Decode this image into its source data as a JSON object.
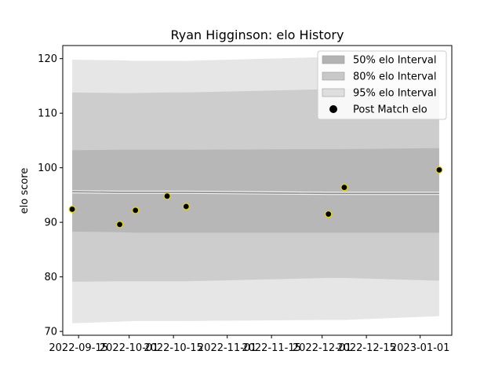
{
  "chart_data": {
    "type": "line",
    "title": "Ryan Higginson: elo History",
    "xlabel": "",
    "ylabel": "elo score",
    "xlim": [
      "2022-09-10",
      "2023-01-11"
    ],
    "ylim": [
      69.3,
      122.4
    ],
    "x_ticks": [
      "2022-09-15",
      "2022-10-01",
      "2022-10-15",
      "2022-11-01",
      "2022-11-15",
      "2022-12-01",
      "2022-12-15",
      "2023-01-01"
    ],
    "y_ticks": [
      70,
      80,
      90,
      100,
      110,
      120
    ],
    "legend_position": "top-right",
    "legend": [
      {
        "label": "50% elo Interval",
        "color": "#b3b3b3"
      },
      {
        "label": "80% elo Interval",
        "color": "#c8c8c8"
      },
      {
        "label": "95% elo Interval",
        "color": "#dedede"
      },
      {
        "label": "Post Match elo",
        "color": "#000000"
      }
    ],
    "x": [
      "2022-09-13",
      "2022-09-28",
      "2022-10-03",
      "2022-10-13",
      "2022-10-19",
      "2022-12-03",
      "2022-12-08",
      "2023-01-07"
    ],
    "post_match_elo": [
      92.4,
      89.6,
      92.2,
      94.8,
      92.9,
      91.5,
      96.4,
      99.6
    ],
    "mean": [
      95.6,
      95.5,
      95.5,
      95.5,
      95.5,
      95.3,
      95.3,
      95.3
    ],
    "band_50": {
      "lower": [
        88.3,
        88.2,
        88.1,
        88.1,
        88.1,
        88.1,
        88.1,
        88.1
      ],
      "upper": [
        103.2,
        103.3,
        103.3,
        103.3,
        103.3,
        103.4,
        103.4,
        103.6
      ]
    },
    "band_80": {
      "lower": [
        79.1,
        79.2,
        79.2,
        79.2,
        79.2,
        79.8,
        79.8,
        79.3
      ],
      "upper": [
        113.8,
        113.7,
        113.7,
        113.8,
        113.8,
        114.4,
        114.5,
        114.5
      ]
    },
    "band_95": {
      "lower": [
        71.5,
        71.8,
        71.9,
        71.9,
        71.9,
        72.1,
        72.1,
        72.8
      ],
      "upper": [
        119.8,
        119.7,
        119.6,
        119.6,
        119.6,
        120.3,
        120.4,
        120.4
      ]
    },
    "colors": {
      "mean_line": "#8c8c8c",
      "point_edge": "#e6d800",
      "point_fill": "#000000"
    }
  }
}
